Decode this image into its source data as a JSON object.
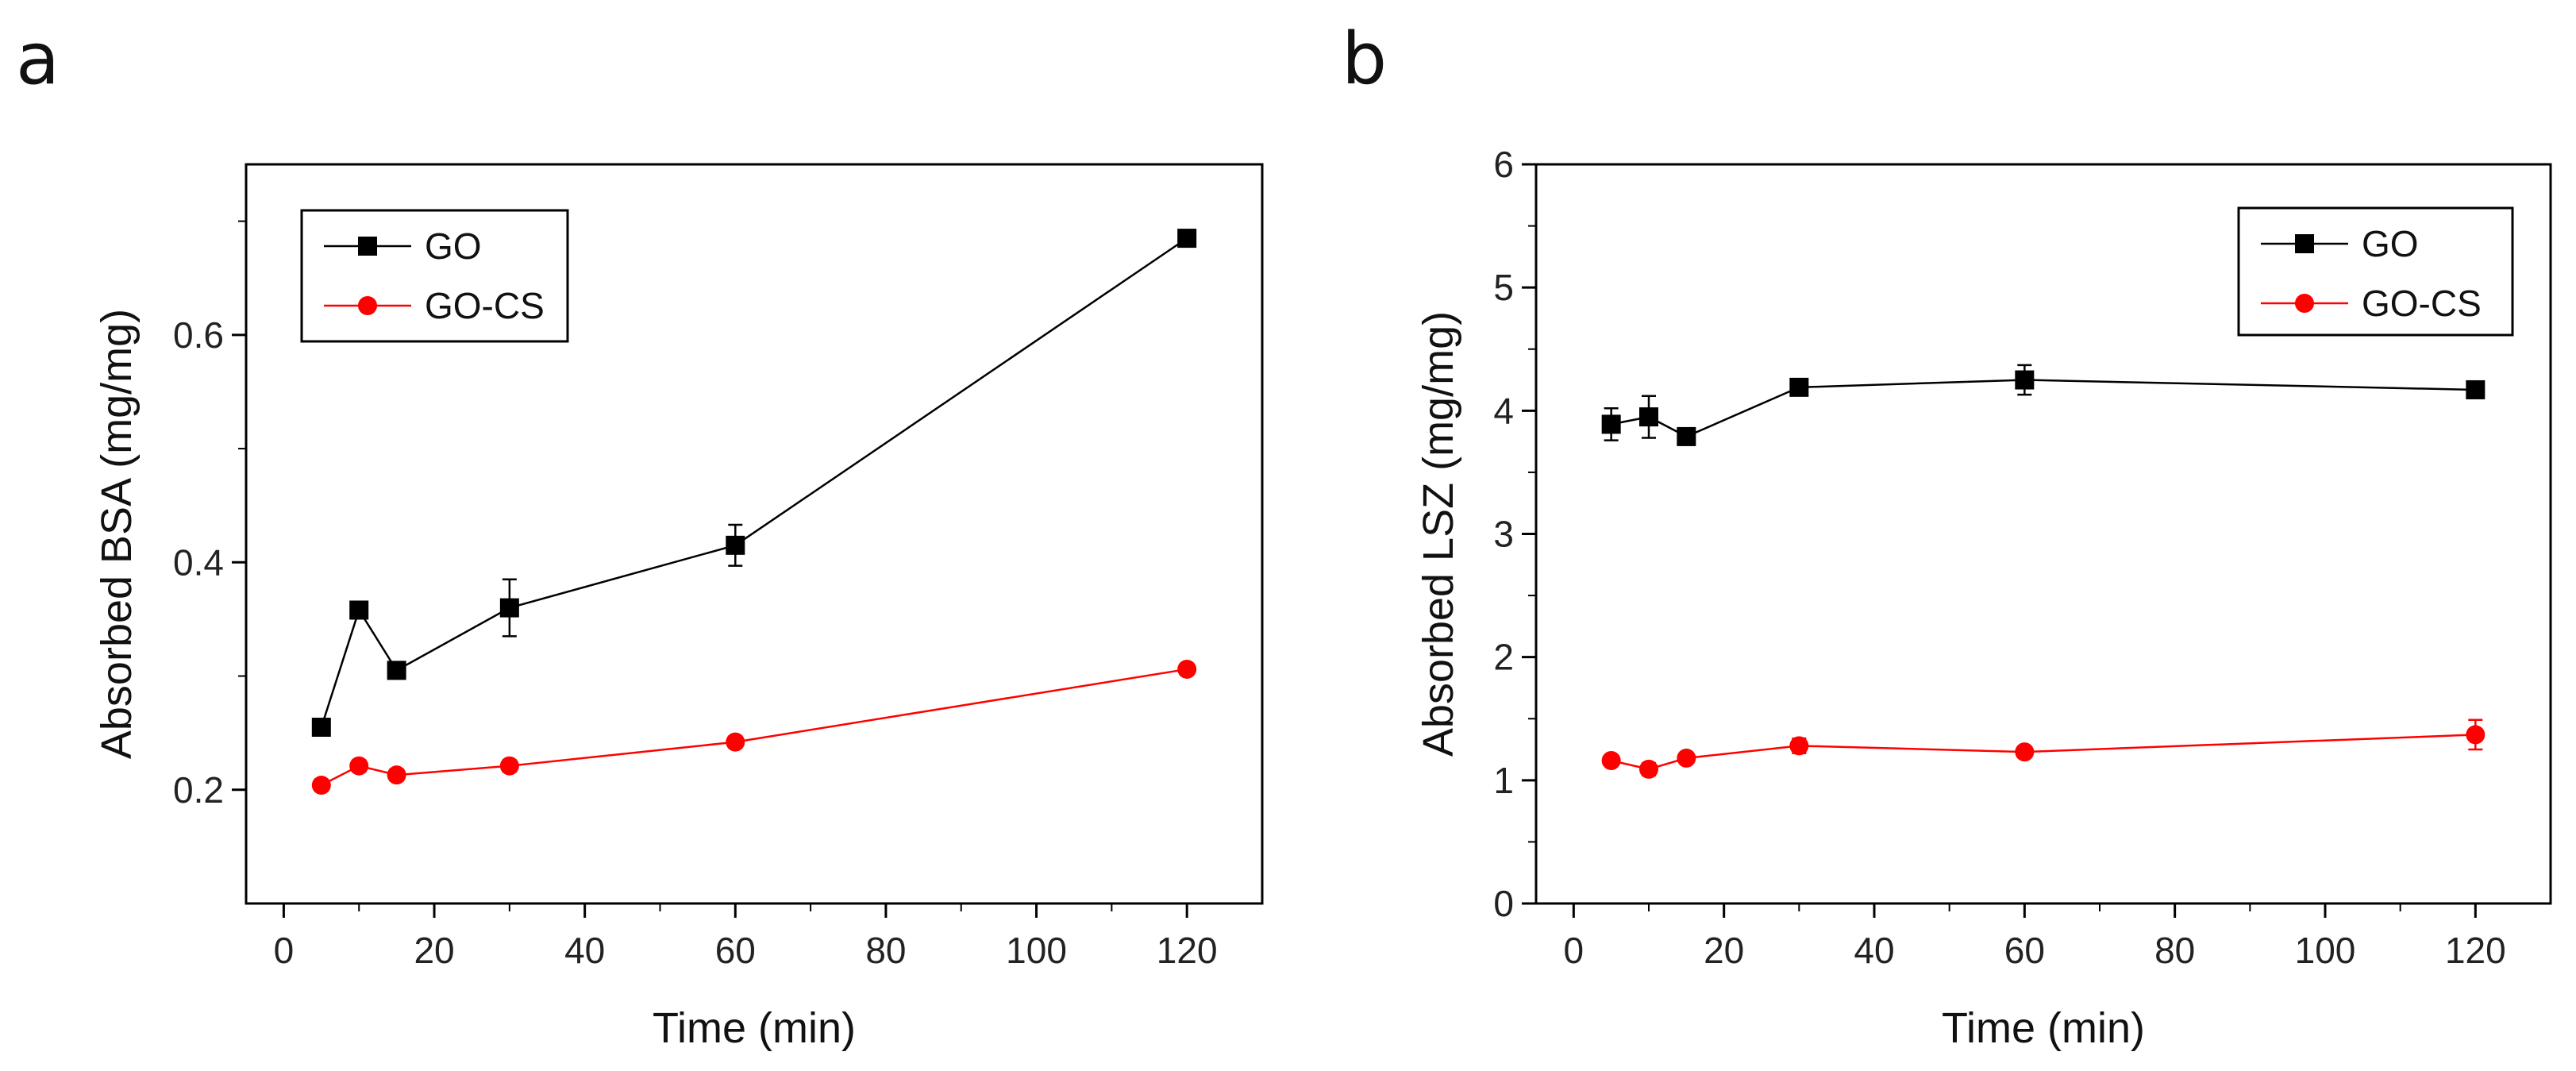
{
  "chart_data": [
    {
      "type": "line",
      "panel_label": "a",
      "xlabel": "Time (min)",
      "ylabel": "Absorbed BSA (mg/mg)",
      "xlim": [
        -5,
        130
      ],
      "ylim": [
        0.1,
        0.75
      ],
      "xticks": [
        0,
        20,
        40,
        60,
        80,
        100,
        120
      ],
      "xtick_labels": [
        "0",
        "20",
        "40",
        "60",
        "80",
        "100",
        "120"
      ],
      "yticks": [
        0.2,
        0.4,
        0.6
      ],
      "ytick_labels": [
        "0.2",
        "0.4",
        "0.6"
      ],
      "legend_position": "top-left",
      "x": [
        5,
        10,
        15,
        30,
        60,
        120
      ],
      "series": [
        {
          "name": "GO",
          "color": "#000000",
          "marker": "square",
          "values": [
            0.255,
            0.358,
            0.305,
            0.36,
            0.415,
            0.685
          ],
          "errors": [
            0.005,
            0.005,
            0.005,
            0.025,
            0.018,
            0.005
          ]
        },
        {
          "name": "GO-CS",
          "color": "#ff0000",
          "marker": "circle",
          "values": [
            0.204,
            0.221,
            0.213,
            0.221,
            0.242,
            0.306
          ],
          "errors": [
            0.005,
            0.005,
            0.005,
            0.005,
            0.005,
            0.005
          ]
        }
      ]
    },
    {
      "type": "line",
      "panel_label": "b",
      "xlabel": "Time (min)",
      "ylabel": "Absorbed LSZ (mg/mg)",
      "xlim": [
        -5,
        130
      ],
      "ylim": [
        0,
        6
      ],
      "xticks": [
        0,
        20,
        40,
        60,
        80,
        100,
        120
      ],
      "xtick_labels": [
        "0",
        "20",
        "40",
        "60",
        "80",
        "100",
        "120"
      ],
      "yticks": [
        0,
        1,
        2,
        3,
        4,
        5,
        6
      ],
      "ytick_labels": [
        "0",
        "1",
        "2",
        "3",
        "4",
        "5",
        "6"
      ],
      "legend_position": "top-right",
      "x": [
        5,
        10,
        15,
        30,
        60,
        120
      ],
      "series": [
        {
          "name": "GO",
          "color": "#000000",
          "marker": "square",
          "values": [
            3.89,
            3.95,
            3.79,
            4.19,
            4.25,
            4.17
          ],
          "errors": [
            0.13,
            0.17,
            0.03,
            0.04,
            0.12,
            0.03
          ]
        },
        {
          "name": "GO-CS",
          "color": "#ff0000",
          "marker": "circle",
          "values": [
            1.16,
            1.09,
            1.18,
            1.28,
            1.23,
            1.37
          ],
          "errors": [
            0.04,
            0.05,
            0.04,
            0.06,
            0.04,
            0.12
          ]
        }
      ]
    }
  ]
}
